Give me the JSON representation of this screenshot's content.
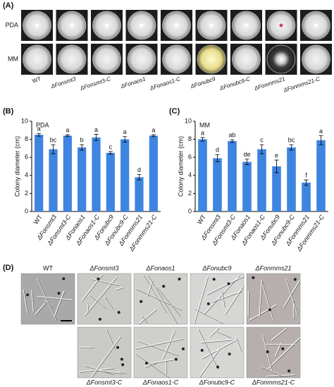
{
  "panel_labels": [
    "(A)",
    "(B)",
    "(C)",
    "(D)"
  ],
  "plates": {
    "rows": [
      "PDA",
      "MM"
    ],
    "strains": [
      "WT",
      "ΔFonsmt3",
      "ΔFonsmt3-C",
      "ΔFonaos1",
      "ΔFonaos1-C",
      "ΔFonubc9",
      "ΔFonubc9-C",
      "ΔFonmms21",
      "ΔFonmms21-C"
    ]
  },
  "chart_data": [
    {
      "type": "bar",
      "annotation": "PDA",
      "ylabel": "Colony diameter (cm)",
      "categories": [
        "WT",
        "ΔFonsmt3",
        "ΔFonsmt3-C",
        "ΔFonaos1",
        "ΔFonaos1-C",
        "ΔFonubc9",
        "ΔFonubc9-C",
        "ΔFonmms21",
        "ΔFonmms21-C"
      ],
      "values": [
        8.5,
        6.9,
        8.4,
        7.1,
        8.2,
        6.5,
        8.0,
        3.8,
        8.4
      ],
      "errors": [
        0.15,
        0.5,
        0.1,
        0.3,
        0.35,
        0.15,
        0.3,
        0.3,
        0.1
      ],
      "letters": [
        "a",
        "bc",
        "a",
        "b",
        "a",
        "c",
        "a",
        "d",
        "a"
      ],
      "color": "#3d85e0",
      "ylim": [
        0,
        10
      ],
      "yticks": [
        0,
        2,
        4,
        6,
        8,
        10
      ]
    },
    {
      "type": "bar",
      "annotation": "MM",
      "ylabel": "Colony diameter (cm)",
      "categories": [
        "WT",
        "ΔFonsmt3",
        "ΔFonsmt3-C",
        "ΔFonaos1",
        "ΔFonaos1-C",
        "ΔFonubc9",
        "ΔFonubc9-C",
        "ΔFonmms21",
        "ΔFonmms21-C"
      ],
      "values": [
        8.0,
        5.9,
        7.8,
        5.5,
        6.9,
        5.0,
        7.1,
        3.2,
        7.9
      ],
      "errors": [
        0.2,
        0.4,
        0.15,
        0.3,
        0.5,
        0.7,
        0.3,
        0.3,
        0.5
      ],
      "letters": [
        "a",
        "d",
        "ab",
        "de",
        "c",
        "e",
        "bc",
        "f",
        "a"
      ],
      "color": "#3d85e0",
      "ylim": [
        0,
        10
      ],
      "yticks": [
        0,
        2,
        4,
        6,
        8,
        10
      ]
    }
  ],
  "micrographs": {
    "top": [
      "WT",
      "ΔFonsmt3",
      "ΔFonaos1",
      "ΔFonubc9",
      "ΔFonmms21"
    ],
    "bottom": [
      "ΔFonsmt3-C",
      "ΔFonaos1-C",
      "ΔFonubc9-C",
      "ΔFonmms21-C"
    ]
  }
}
